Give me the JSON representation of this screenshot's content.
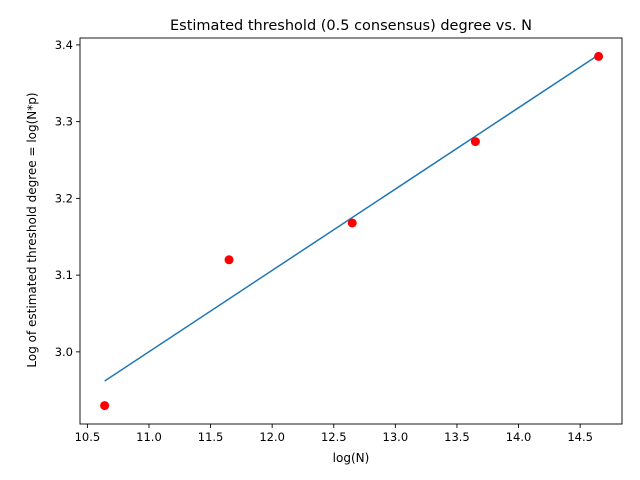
{
  "chart_data": {
    "type": "scatter",
    "title": "Estimated threshold (0.5 consensus) degree vs. N",
    "xlabel": "log(N)",
    "ylabel": "Log of estimated threshold degree = log(N*p)",
    "xlim": [
      10.44,
      14.84
    ],
    "ylim": [
      2.906,
      3.409
    ],
    "xticks": [
      "10.5",
      "11.0",
      "11.5",
      "12.0",
      "12.5",
      "13.0",
      "13.5",
      "14.0",
      "14.5"
    ],
    "yticks": [
      "3.0",
      "3.1",
      "3.2",
      "3.3",
      "3.4"
    ],
    "grid": false,
    "series": [
      {
        "type": "scatter",
        "color": "#ff0000",
        "x": [
          10.64,
          11.65,
          12.65,
          13.65,
          14.65
        ],
        "y": [
          2.93,
          3.12,
          3.168,
          3.274,
          3.385
        ]
      },
      {
        "type": "line",
        "color": "#1f77b4",
        "x": [
          10.64,
          14.65
        ],
        "y": [
          2.962,
          3.387
        ]
      }
    ]
  }
}
